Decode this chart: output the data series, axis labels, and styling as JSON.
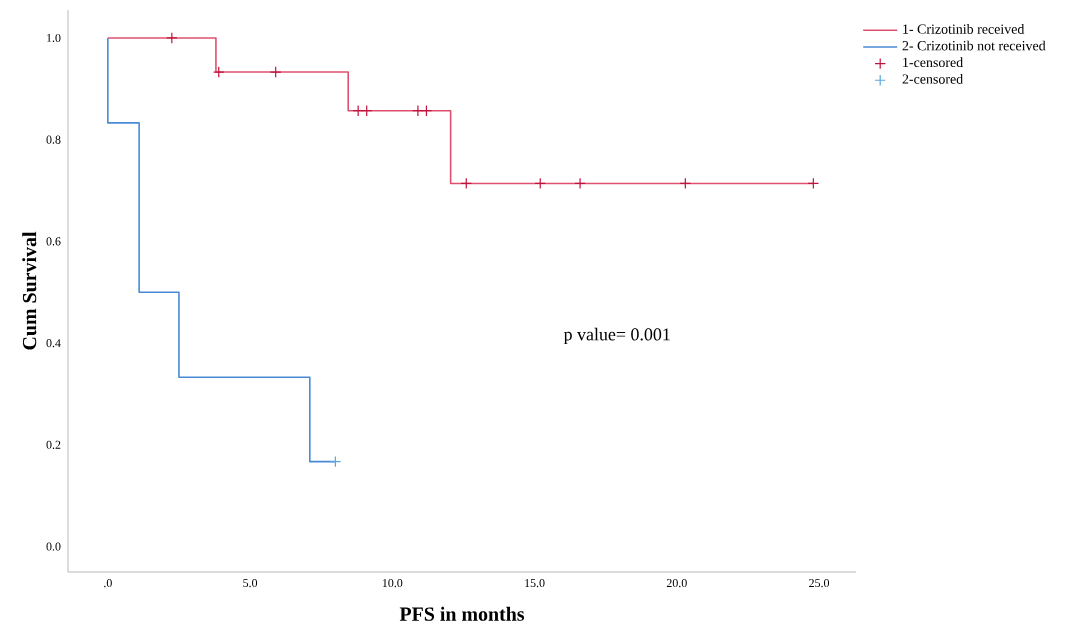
{
  "chart_data": {
    "type": "step",
    "xlabel": "PFS in months",
    "ylabel": "Cum Survival",
    "xlim": [
      -1.4,
      26.3
    ],
    "ylim": [
      -0.05,
      1.055
    ],
    "xticks": [
      {
        "value": 0,
        "label": ".0"
      },
      {
        "value": 5,
        "label": "5.0"
      },
      {
        "value": 10,
        "label": "10.0"
      },
      {
        "value": 15,
        "label": "15.0"
      },
      {
        "value": 20,
        "label": "20.0"
      },
      {
        "value": 25,
        "label": "25.0"
      }
    ],
    "yticks": [
      {
        "value": 0,
        "label": "0.0"
      },
      {
        "value": 0.2,
        "label": "0.2"
      },
      {
        "value": 0.4,
        "label": "0.4"
      },
      {
        "value": 0.6,
        "label": "0.6"
      },
      {
        "value": 0.8,
        "label": "0.8"
      },
      {
        "value": 1.0,
        "label": "1.0"
      }
    ],
    "legend": "right",
    "grid": false,
    "annotations": [
      "p value= 0.001"
    ],
    "series": [
      {
        "name": "1- Crizotinib received",
        "color": "#e0506e",
        "x": [
          0,
          3.8,
          8.45,
          12.05,
          24.8
        ],
        "values": [
          1.0,
          0.933,
          0.857,
          0.714,
          0.714
        ]
      },
      {
        "name": "2- Crizotinib not received",
        "color": "#4a8ad4",
        "x": [
          0,
          0,
          1.1,
          2.5,
          7.1,
          8.0
        ],
        "values": [
          1.0,
          0.833,
          0.5,
          0.333,
          0.167,
          0.167
        ]
      },
      {
        "name": "1-censored",
        "type": "scatter",
        "marker": "cross",
        "color": "#c0143c",
        "x": [
          2.25,
          3.9,
          5.9,
          8.8,
          9.1,
          10.9,
          11.2,
          12.6,
          15.2,
          16.6,
          20.3,
          24.8
        ],
        "values": [
          1.0,
          0.933,
          0.933,
          0.857,
          0.857,
          0.857,
          0.857,
          0.714,
          0.714,
          0.714,
          0.714,
          0.714
        ]
      },
      {
        "name": "2-censored",
        "type": "scatter",
        "marker": "cross",
        "color": "#5aa8e0",
        "x": [
          8.0
        ],
        "values": [
          0.167
        ]
      }
    ]
  }
}
